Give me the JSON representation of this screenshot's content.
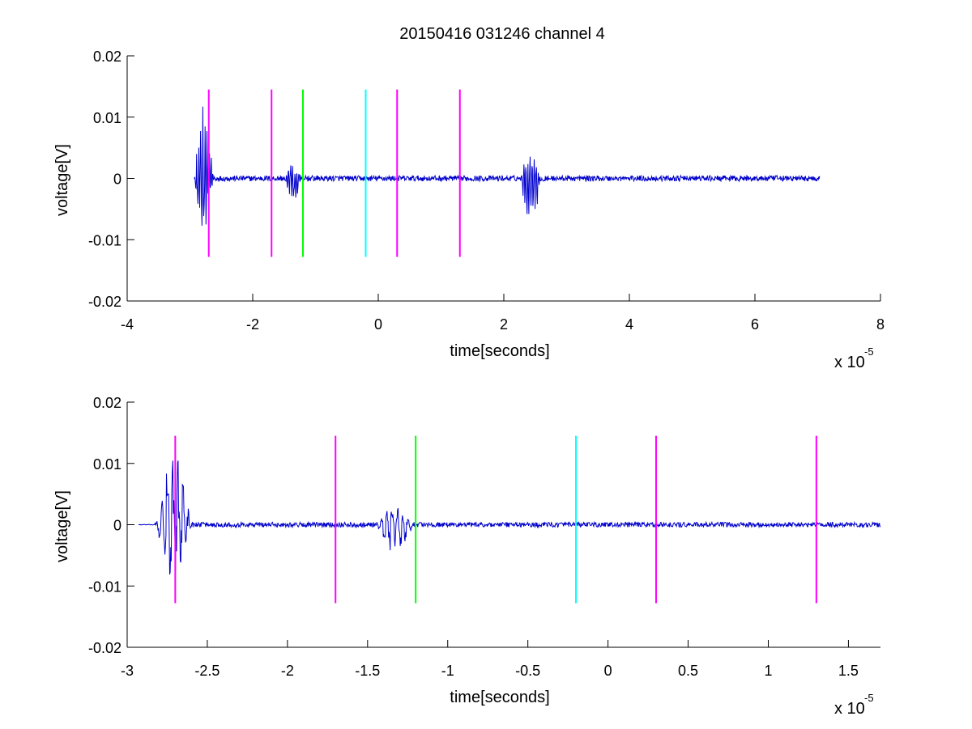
{
  "title": "20150416 031246 channel 4",
  "colors": {
    "signal": "#0000cc",
    "magenta": "#ff00ff",
    "green": "#00ff00",
    "cyan": "#00ffff",
    "axes": "#000000",
    "background": "#ffffff"
  },
  "chart_data": [
    {
      "type": "line",
      "title": "20150416 031246 channel 4",
      "xlabel": "time[seconds]",
      "ylabel": "voltage[V]",
      "x_multiplier_label": "x 10",
      "x_multiplier_exp": "-5",
      "xlim": [
        -4,
        8
      ],
      "ylim": [
        -0.02,
        0.02
      ],
      "xticks": [
        -4,
        -2,
        0,
        2,
        4,
        6,
        8
      ],
      "xtick_labels": [
        "-4",
        "-2",
        "0",
        "2",
        "4",
        "6",
        "8"
      ],
      "yticks": [
        -0.02,
        -0.01,
        0,
        0.01,
        0.02
      ],
      "ytick_labels": [
        "-0.02",
        "-0.01",
        "0",
        "0.01",
        "0.02"
      ],
      "grid": false,
      "series": [
        {
          "kind": "signal",
          "color": "#0000cc",
          "x_range": [
            -2.93,
            7.03
          ],
          "bursts": [
            {
              "center": -2.8,
              "start": -2.93,
              "end": -2.55,
              "peak_max": 0.013,
              "peak_min": -0.01
            },
            {
              "center": -1.4,
              "start": -1.5,
              "end": -1.15,
              "peak_max": 0.0027,
              "peak_min": -0.0045
            },
            {
              "center": 2.4,
              "start": 2.28,
              "end": 2.65,
              "peak_max": 0.005,
              "peak_min": -0.0115
            }
          ],
          "noise_amplitude": 0.00045
        }
      ],
      "markers": [
        {
          "x": -2.7,
          "color": "#ff00ff",
          "y_range": [
            -0.0128,
            0.0145
          ]
        },
        {
          "x": -1.7,
          "color": "#ff00ff",
          "y_range": [
            -0.0128,
            0.0145
          ]
        },
        {
          "x": -1.2,
          "color": "#00ff00",
          "y_range": [
            -0.0128,
            0.0145
          ]
        },
        {
          "x": -0.2,
          "color": "#00ffff",
          "y_range": [
            -0.0128,
            0.0145
          ]
        },
        {
          "x": 0.3,
          "color": "#ff00ff",
          "y_range": [
            -0.0128,
            0.0145
          ]
        },
        {
          "x": 1.3,
          "color": "#ff00ff",
          "y_range": [
            -0.0128,
            0.0145
          ]
        }
      ]
    },
    {
      "type": "line",
      "title": "",
      "xlabel": "time[seconds]",
      "ylabel": "voltage[V]",
      "x_multiplier_label": "x 10",
      "x_multiplier_exp": "-5",
      "xlim": [
        -3.0,
        1.7
      ],
      "ylim": [
        -0.02,
        0.02
      ],
      "xticks": [
        -3,
        -2.5,
        -2,
        -1.5,
        -1,
        -0.5,
        0,
        0.5,
        1,
        1.5
      ],
      "xtick_labels": [
        "-3",
        "-2.5",
        "-2",
        "-1.5",
        "-1",
        "-0.5",
        "0",
        "0.5",
        "1",
        "1.5"
      ],
      "yticks": [
        -0.02,
        -0.01,
        0,
        0.01,
        0.02
      ],
      "ytick_labels": [
        "-0.02",
        "-0.01",
        "0",
        "0.01",
        "0.02"
      ],
      "grid": false,
      "series": [
        {
          "kind": "signal",
          "color": "#0000cc",
          "x_range": [
            -2.93,
            1.7
          ],
          "bursts": [
            {
              "center": -2.75,
              "start": -2.82,
              "end": -2.55,
              "peak_max": 0.013,
              "peak_min": -0.01
            },
            {
              "center": -1.38,
              "start": -1.45,
              "end": -1.15,
              "peak_max": 0.0027,
              "peak_min": -0.0045
            }
          ],
          "noise_amplitude": 0.0004
        }
      ],
      "markers": [
        {
          "x": -2.7,
          "color": "#ff00ff",
          "y_range": [
            -0.0128,
            0.0145
          ]
        },
        {
          "x": -1.7,
          "color": "#ff00ff",
          "y_range": [
            -0.0128,
            0.0145
          ]
        },
        {
          "x": -1.2,
          "color": "#00ff00",
          "y_range": [
            -0.0128,
            0.0145
          ]
        },
        {
          "x": -0.2,
          "color": "#00ffff",
          "y_range": [
            -0.0128,
            0.0145
          ]
        },
        {
          "x": 0.3,
          "color": "#ff00ff",
          "y_range": [
            -0.0128,
            0.0145
          ]
        },
        {
          "x": 1.3,
          "color": "#ff00ff",
          "y_range": [
            -0.0128,
            0.0145
          ]
        }
      ]
    }
  ]
}
